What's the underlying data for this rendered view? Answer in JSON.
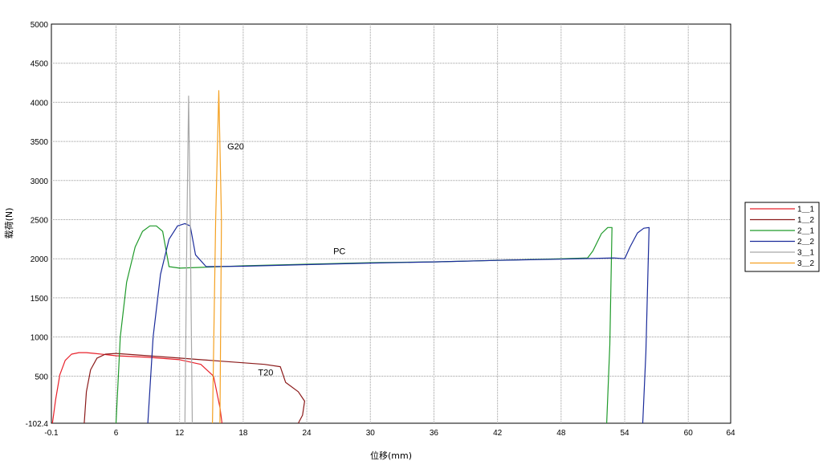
{
  "chart_data": {
    "type": "line",
    "title": "",
    "xlabel": "位移(mm)",
    "ylabel": "载荷(N)",
    "xlim": [
      -0.1,
      64
    ],
    "ylim": [
      -102.4,
      5000
    ],
    "x_ticks": [
      "-0.1",
      "6",
      "12",
      "18",
      "24",
      "30",
      "36",
      "42",
      "48",
      "54",
      "60",
      "64"
    ],
    "x_tick_values": [
      -0.1,
      6,
      12,
      18,
      24,
      30,
      36,
      42,
      48,
      54,
      60,
      64
    ],
    "y_ticks": [
      "-102.4",
      "500",
      "1000",
      "1500",
      "2000",
      "2500",
      "3000",
      "3500",
      "4000",
      "4500",
      "5000"
    ],
    "y_tick_values": [
      -102.4,
      500,
      1000,
      1500,
      2000,
      2500,
      3000,
      3500,
      4000,
      4500,
      5000
    ],
    "grid": true,
    "legend_position": "right",
    "annotations": [
      {
        "text": "G20",
        "x": 16.5,
        "y": 3400
      },
      {
        "text": "PC",
        "x": 26.5,
        "y": 2060
      },
      {
        "text": "T20",
        "x": 19.4,
        "y": 510
      }
    ],
    "series": [
      {
        "name": "1＿1",
        "color": "#e8202a",
        "x": [
          0.0,
          0.3,
          0.7,
          1.2,
          1.8,
          2.5,
          3.2,
          4.0,
          6.0,
          9.0,
          12.0,
          14.0,
          15.2,
          15.8,
          16.0
        ],
        "y": [
          -102.4,
          200,
          520,
          700,
          780,
          800,
          800,
          790,
          760,
          740,
          710,
          650,
          500,
          100,
          -102.4
        ]
      },
      {
        "name": "1＿2",
        "color": "#8b1a1a",
        "x": [
          3.0,
          3.2,
          3.6,
          4.2,
          5.0,
          6.0,
          8.0,
          12.0,
          16.0,
          20.0,
          21.5,
          22.0,
          23.2,
          23.8,
          23.6,
          23.2
        ],
        "y": [
          -102.4,
          300,
          580,
          730,
          780,
          790,
          770,
          730,
          690,
          650,
          620,
          420,
          300,
          180,
          0,
          -102.4
        ]
      },
      {
        "name": "2＿1",
        "color": "#1f9a2a",
        "x": [
          6.0,
          6.4,
          7.0,
          7.8,
          8.5,
          9.2,
          9.8,
          10.4,
          11.0,
          12.0,
          18.0,
          24.0,
          30.0,
          36.0,
          42.0,
          48.0,
          50.5,
          51.0,
          51.8,
          52.4,
          52.8,
          52.6,
          52.3
        ],
        "y": [
          -102.4,
          1000,
          1700,
          2150,
          2350,
          2420,
          2420,
          2350,
          1900,
          1880,
          1910,
          1930,
          1950,
          1960,
          1980,
          2000,
          2010,
          2100,
          2320,
          2400,
          2400,
          900,
          -102.4
        ]
      },
      {
        "name": "2＿2",
        "color": "#1a2b9a",
        "x": [
          9.0,
          9.5,
          10.2,
          11.0,
          11.8,
          12.5,
          13.0,
          13.5,
          14.5,
          18.0,
          24.0,
          30.0,
          36.0,
          42.0,
          48.0,
          53.0,
          54.0,
          54.5,
          55.2,
          55.8,
          56.3,
          56.0,
          55.7
        ],
        "y": [
          -102.4,
          1000,
          1800,
          2250,
          2420,
          2450,
          2420,
          2050,
          1900,
          1905,
          1925,
          1945,
          1960,
          1980,
          1995,
          2010,
          2000,
          2150,
          2330,
          2390,
          2400,
          800,
          -102.4
        ]
      },
      {
        "name": "3＿1",
        "color": "#a8a8a8",
        "x": [
          12.5,
          12.7,
          12.85,
          13.0,
          13.2
        ],
        "y": [
          -102.4,
          2500,
          4080,
          2500,
          -102.4
        ]
      },
      {
        "name": "3＿2",
        "color": "#f4a020",
        "x": [
          15.1,
          15.4,
          15.7,
          15.95,
          15.8
        ],
        "y": [
          -102.4,
          2500,
          4150,
          2500,
          -102.4
        ]
      }
    ]
  }
}
